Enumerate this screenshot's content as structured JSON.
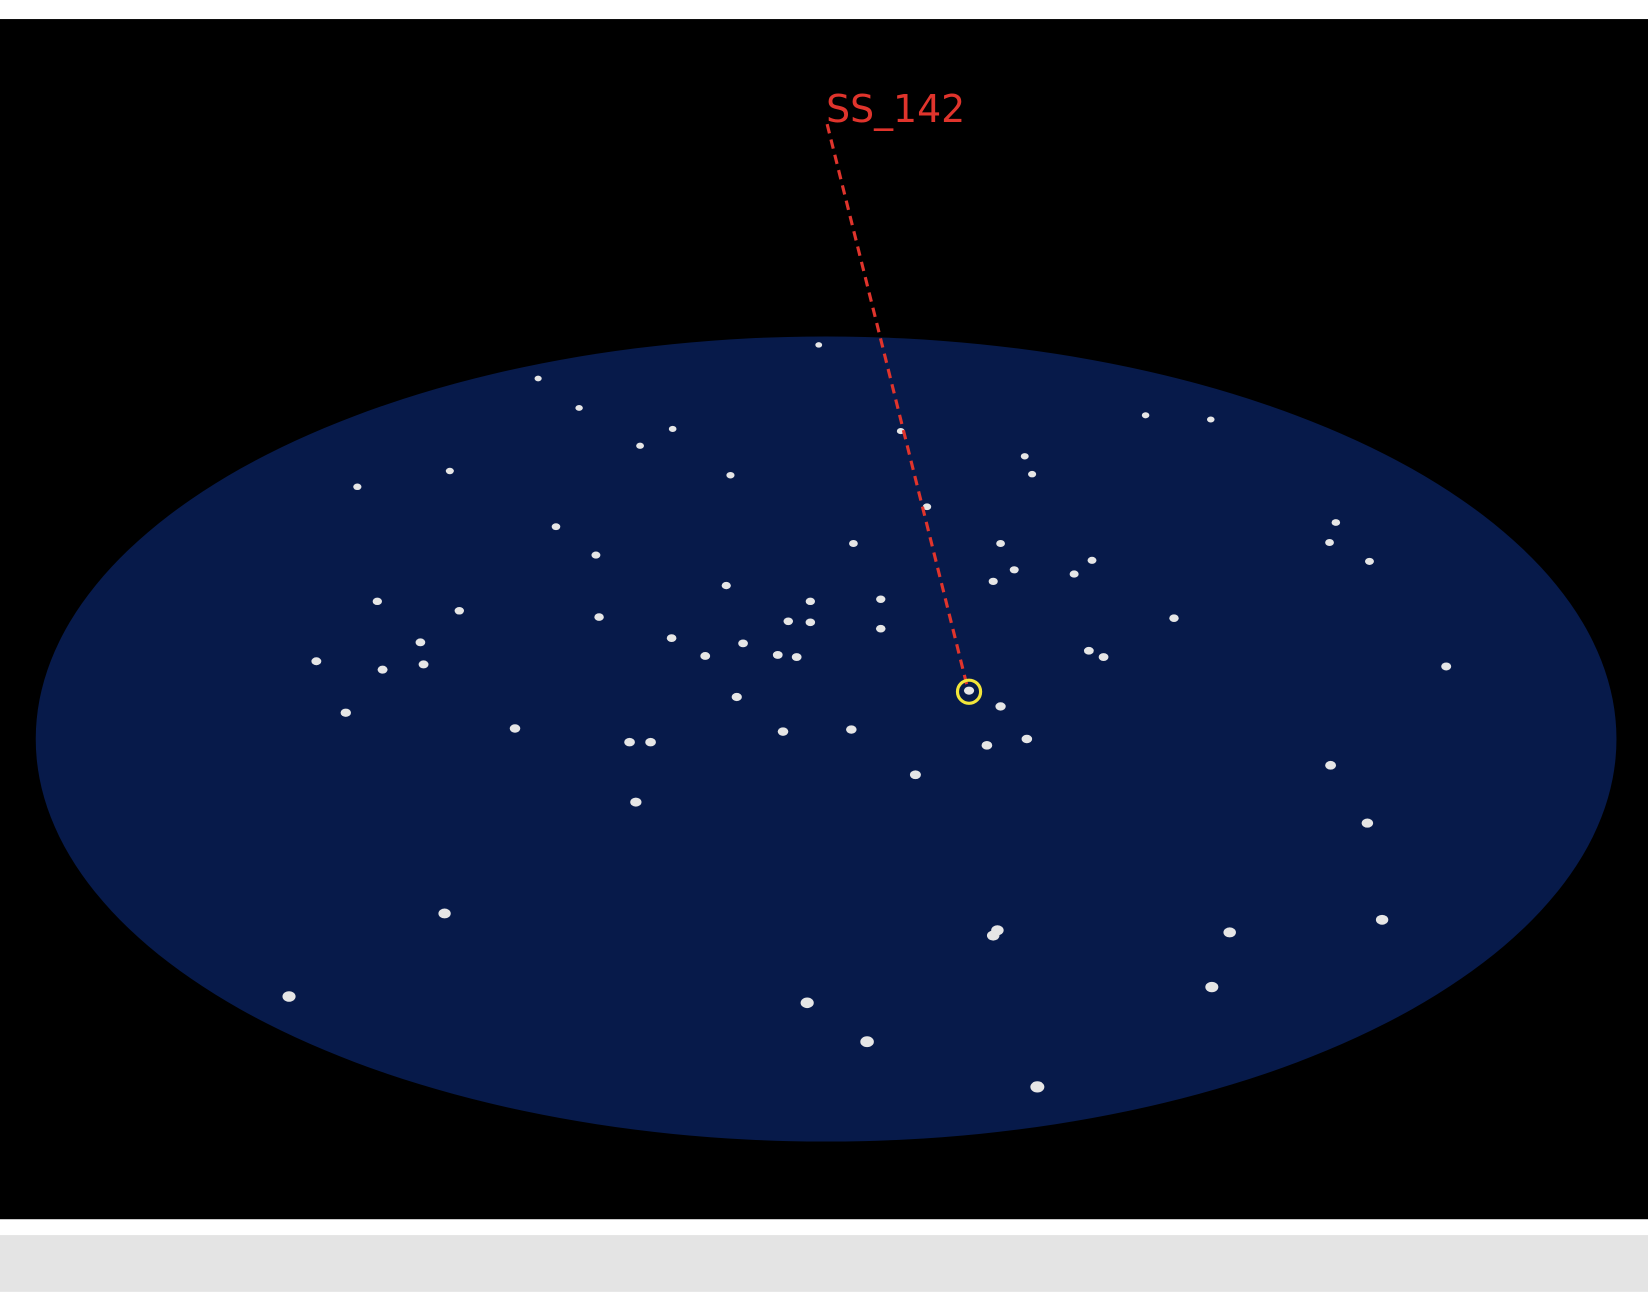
{
  "label": {
    "text": "SS_142"
  }
}
